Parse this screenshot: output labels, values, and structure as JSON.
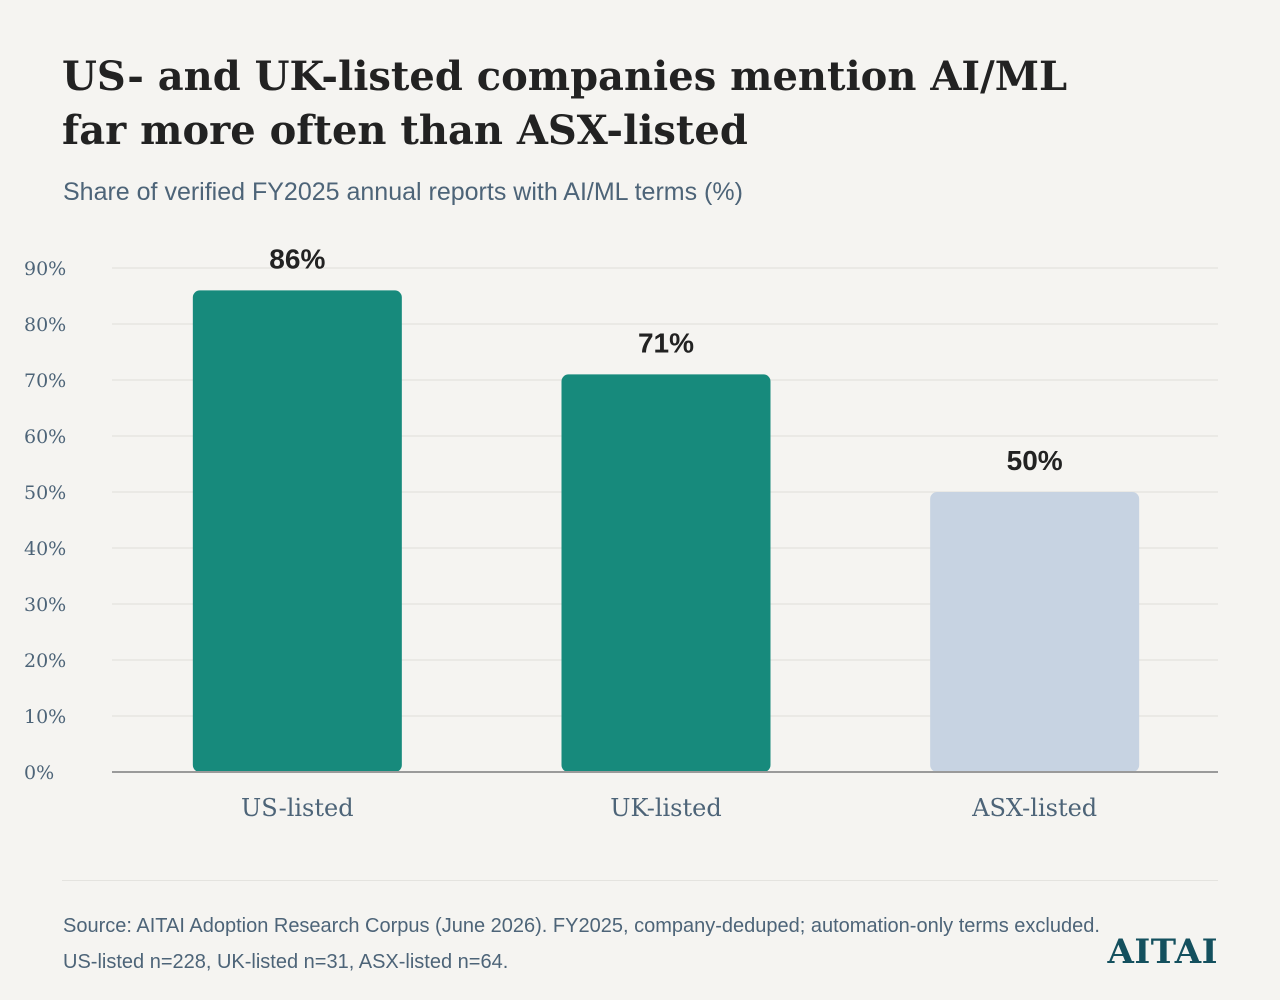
{
  "title_lines": [
    "US- and UK-listed companies mention AI/ML",
    "far more often than ASX-listed"
  ],
  "subtitle": "Share of verified FY2025 annual reports with AI/ML terms (%)",
  "source_lines": [
    "Source: AITAI Adoption Research Corpus (June 2026). FY2025, company-deduped; automation-only terms excluded.",
    "US-listed n=228, UK-listed n=31, ASX-listed n=64."
  ],
  "brand": "AITAI",
  "colors": {
    "highlight": "#178a7c",
    "muted": "#c7d3e2",
    "background": "#f5f4f1",
    "grid": "#e6e5e1",
    "axis": "#9a9a9a"
  },
  "chart_data": {
    "type": "bar",
    "categories": [
      "US-listed",
      "UK-listed",
      "ASX-listed"
    ],
    "values": [
      86,
      71,
      50
    ],
    "value_labels": [
      "86%",
      "71%",
      "50%"
    ],
    "bar_colors": [
      "#178a7c",
      "#178a7c",
      "#c7d3e2"
    ],
    "ylim": [
      0,
      90
    ],
    "yticks": [
      0,
      10,
      20,
      30,
      40,
      50,
      60,
      70,
      80,
      90
    ],
    "ytick_labels": [
      "0%",
      "10%",
      "20%",
      "30%",
      "40%",
      "50%",
      "60%",
      "70%",
      "80%",
      "90%"
    ],
    "grid": true,
    "legend": "none"
  }
}
